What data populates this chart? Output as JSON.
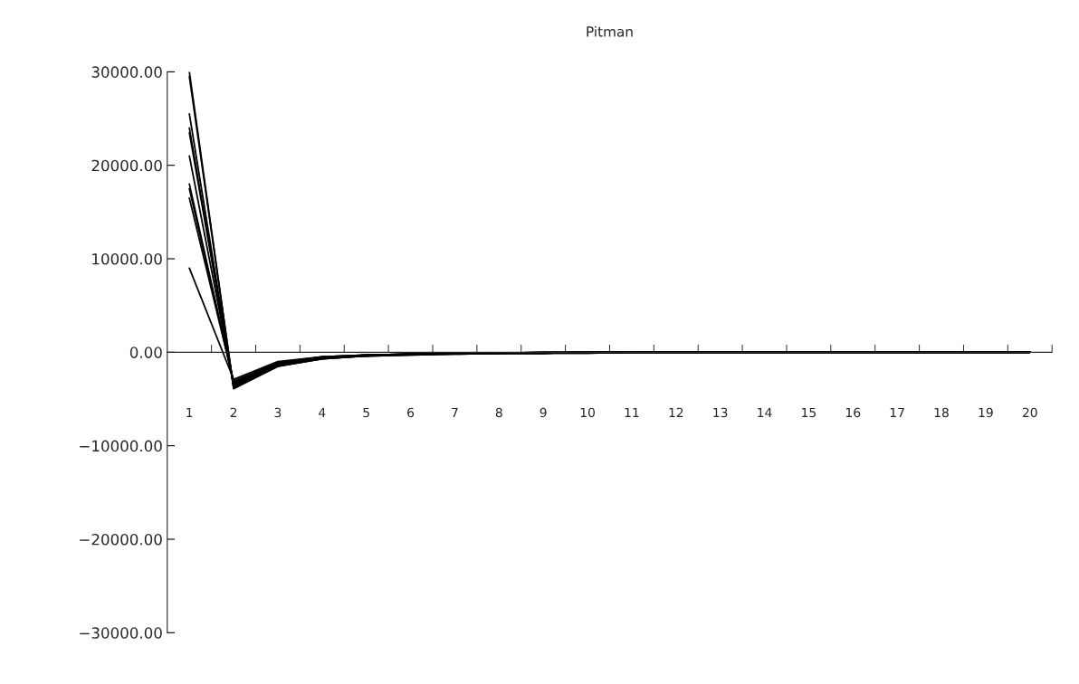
{
  "chart_data": {
    "type": "line",
    "title": "Pitman",
    "categories": [
      "1",
      "2",
      "3",
      "4",
      "5",
      "6",
      "7",
      "8",
      "9",
      "10",
      "11",
      "12",
      "13",
      "14",
      "15",
      "16",
      "17",
      "18",
      "19",
      "20"
    ],
    "ylim": [
      -30000,
      30000
    ],
    "yticks": [
      {
        "value": -30000,
        "label": "−30000.00"
      },
      {
        "value": -20000,
        "label": "−20000.00"
      },
      {
        "value": -10000,
        "label": "−10000.00"
      },
      {
        "value": 0,
        "label": "0.00"
      },
      {
        "value": 10000,
        "label": "10000.00"
      },
      {
        "value": 20000,
        "label": "20000.00"
      },
      {
        "value": 30000,
        "label": "30000.00"
      }
    ],
    "marker": "none",
    "line_style": "solid",
    "series": [
      {
        "color": "#000000",
        "values": [
          30000,
          -3900,
          -1500,
          -700,
          -400,
          -300,
          -200,
          -100,
          -100,
          -100,
          0,
          0,
          0,
          0,
          0,
          0,
          0,
          0,
          0,
          0
        ]
      },
      {
        "color": "#000000",
        "values": [
          29500,
          -3800,
          -1500,
          -700,
          -400,
          -300,
          -200,
          -100,
          -100,
          -100,
          0,
          0,
          0,
          0,
          0,
          0,
          0,
          0,
          0,
          0
        ]
      },
      {
        "color": "#000000",
        "values": [
          25500,
          -3700,
          -1400,
          -700,
          -400,
          -200,
          -100,
          -100,
          -100,
          0,
          0,
          0,
          0,
          0,
          0,
          0,
          0,
          0,
          0,
          0
        ]
      },
      {
        "color": "#000000",
        "values": [
          24000,
          -3600,
          -1400,
          -600,
          -400,
          -200,
          -100,
          -100,
          -100,
          0,
          0,
          0,
          0,
          0,
          0,
          0,
          0,
          0,
          0,
          0
        ]
      },
      {
        "color": "#000000",
        "values": [
          23500,
          -3500,
          -1300,
          -600,
          -300,
          -200,
          -100,
          -100,
          -100,
          0,
          0,
          0,
          0,
          0,
          0,
          0,
          0,
          0,
          0,
          0
        ]
      },
      {
        "color": "#000000",
        "values": [
          21000,
          -3400,
          -1300,
          -600,
          -300,
          -200,
          -100,
          -100,
          -100,
          0,
          0,
          0,
          0,
          0,
          0,
          0,
          0,
          0,
          0,
          0
        ]
      },
      {
        "color": "#000000",
        "values": [
          18000,
          -3300,
          -1200,
          -600,
          -300,
          -200,
          -100,
          -100,
          -100,
          0,
          0,
          0,
          0,
          0,
          0,
          0,
          0,
          0,
          0,
          0
        ]
      },
      {
        "color": "#000000",
        "values": [
          17500,
          -3200,
          -1200,
          -500,
          -300,
          -200,
          -100,
          -100,
          0,
          0,
          0,
          0,
          0,
          0,
          0,
          0,
          0,
          0,
          0,
          0
        ]
      },
      {
        "color": "#000000",
        "values": [
          16500,
          -3100,
          -1100,
          -500,
          -300,
          -200,
          -100,
          -100,
          0,
          0,
          0,
          0,
          0,
          0,
          0,
          0,
          0,
          0,
          0,
          0
        ]
      },
      {
        "color": "#000000",
        "values": [
          9000,
          -2900,
          -1000,
          -500,
          -300,
          -200,
          -100,
          -100,
          0,
          0,
          0,
          0,
          0,
          0,
          0,
          0,
          0,
          0,
          0,
          0
        ]
      }
    ]
  }
}
